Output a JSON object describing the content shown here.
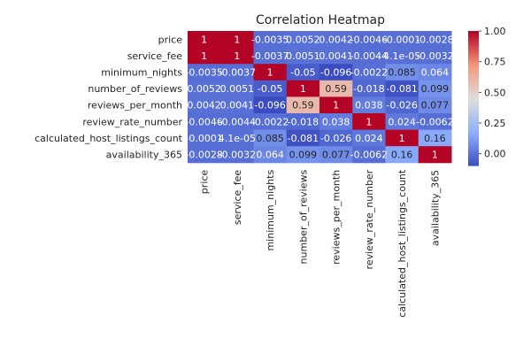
{
  "chart_data": {
    "type": "heatmap",
    "title": "Correlation Heatmap",
    "row_labels": [
      "price",
      "service_fee",
      "minimum_nights",
      "number_of_reviews",
      "reviews_per_month",
      "review_rate_number",
      "calculated_host_listings_count",
      "availability_365"
    ],
    "col_labels": [
      "price",
      "service_fee",
      "minimum_nights",
      "number_of_reviews",
      "reviews_per_month",
      "review_rate_number",
      "calculated_host_listings_count",
      "availability_365"
    ],
    "values": [
      [
        1,
        1,
        -0.0035,
        0.0052,
        0.0042,
        -0.0046,
        -0.0001,
        -0.0028
      ],
      [
        1,
        1,
        -0.0037,
        0.0051,
        0.0041,
        -0.0044,
        4.1e-05,
        -0.0032
      ],
      [
        -0.0035,
        -0.0037,
        1,
        -0.05,
        -0.096,
        -0.0022,
        0.085,
        0.064
      ],
      [
        0.0052,
        0.0051,
        -0.05,
        1,
        0.59,
        -0.018,
        -0.081,
        0.099
      ],
      [
        0.0042,
        0.0041,
        -0.096,
        0.59,
        1,
        0.038,
        -0.026,
        0.077
      ],
      [
        -0.0046,
        -0.0044,
        -0.0022,
        -0.018,
        0.038,
        1,
        0.024,
        -0.0062
      ],
      [
        -0.0001,
        4.1e-05,
        0.085,
        -0.081,
        -0.026,
        0.024,
        1,
        0.16
      ],
      [
        -0.0028,
        -0.0032,
        0.064,
        0.099,
        0.077,
        -0.0062,
        0.16,
        1
      ]
    ],
    "cell_labels": [
      [
        "1",
        "1",
        "-0.0035",
        "0.0052",
        "0.0042",
        "-0.0046",
        "-0.0001",
        "-0.0028"
      ],
      [
        "1",
        "1",
        "-0.0037",
        "0.0051",
        "0.0041",
        "-0.0044",
        "4.1e-05",
        "-0.0032"
      ],
      [
        "-0.0035",
        "-0.0037",
        "1",
        "-0.05",
        "-0.096",
        "-0.0022",
        "0.085",
        "0.064"
      ],
      [
        "0.0052",
        "0.0051",
        "-0.05",
        "1",
        "0.59",
        "-0.018",
        "-0.081",
        "0.099"
      ],
      [
        "0.0042",
        "0.0041",
        "-0.096",
        "0.59",
        "1",
        "0.038",
        "-0.026",
        "0.077"
      ],
      [
        "-0.0046",
        "-0.0044",
        "-0.0022",
        "-0.018",
        "0.038",
        "1",
        "0.024",
        "-0.0062"
      ],
      [
        "-0.0001",
        "4.1e-05",
        "0.085",
        "-0.081",
        "-0.026",
        "0.024",
        "1",
        "0.16"
      ],
      [
        "-0.0028",
        "-0.0032",
        "0.064",
        "0.099",
        "0.077",
        "-0.0062",
        "0.16",
        "1"
      ]
    ],
    "colorbar": {
      "colormap": "coolwarm",
      "vmin": -0.096,
      "vmax": 1,
      "ticks": [
        "1.00",
        "0.75",
        "0.50",
        "0.25",
        "0.00"
      ]
    },
    "grid": false
  }
}
